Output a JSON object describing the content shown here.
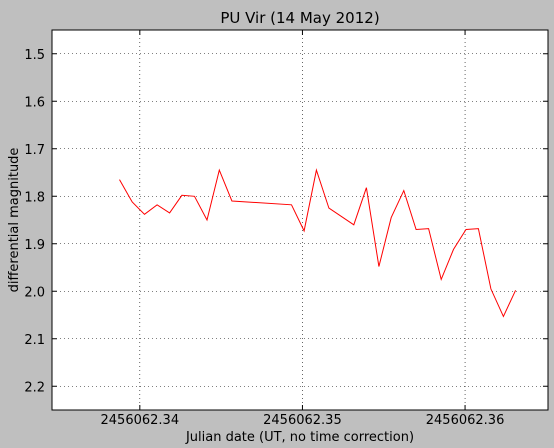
{
  "chart_data": {
    "type": "line",
    "title": "PU Vir (14 May 2012)",
    "xlabel": "Julian date (UT, no time correction)",
    "ylabel": "differential magnitude",
    "xlim": [
      2456062.3346,
      2456062.3651
    ],
    "ylim": [
      2.25,
      1.45
    ],
    "y_inverted": true,
    "grid": true,
    "line_color": "#ff0000",
    "x_ticks": [
      2456062.34,
      2456062.35,
      2456062.36
    ],
    "x_tick_labels": [
      "2456062.34",
      "2456062.35",
      "2456062.36"
    ],
    "y_ticks": [
      1.5,
      1.6,
      1.7,
      1.8,
      1.9,
      2.0,
      2.1,
      2.2
    ],
    "y_tick_labels": [
      "1.5",
      "1.6",
      "1.7",
      "1.8",
      "1.9",
      "2.0",
      "2.1",
      "2.2"
    ],
    "series": [
      {
        "x": [
          2456062.33875,
          2456062.33953,
          2456062.34029,
          2456062.34106,
          2456062.34183,
          2456062.34259,
          2456062.34336,
          2456062.34413,
          2456062.34489,
          2456062.34566,
          2456062.34933,
          2456062.3501,
          2456062.35086,
          2456062.35163,
          2456062.35316,
          2456062.35393,
          2456062.3547,
          2456062.35546,
          2456062.35623,
          2456062.35699,
          2456062.35776,
          2456062.35853,
          2456062.35929,
          2456062.36006,
          2456062.36082,
          2456062.36159,
          2456062.36236,
          2456062.36311
        ],
        "y": [
          1.765,
          1.812,
          1.838,
          1.818,
          1.835,
          1.798,
          1.8,
          1.85,
          1.745,
          1.81,
          1.818,
          1.873,
          1.745,
          1.825,
          1.86,
          1.782,
          1.948,
          1.845,
          1.788,
          1.87,
          1.868,
          1.975,
          1.912,
          1.87,
          1.868,
          1.995,
          2.053,
          1.998
        ]
      }
    ]
  }
}
